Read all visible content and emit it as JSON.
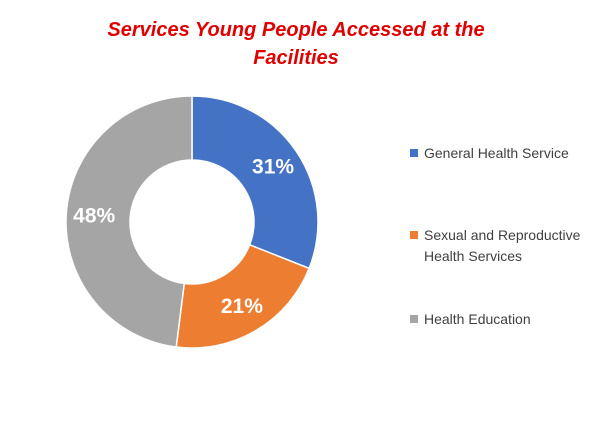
{
  "chart_data": {
    "type": "pie",
    "donut": true,
    "title": "Services Young People Accessed at the Facilities",
    "categories": [
      "General Health Service",
      "Sexual and Reproductive Health Services",
      "Health Education"
    ],
    "values": [
      31,
      21,
      48
    ],
    "labels": [
      "31%",
      "21%",
      "48%"
    ],
    "colors": [
      "#4472c4",
      "#ed7d31",
      "#a5a5a5"
    ],
    "legend": "right"
  },
  "legend_items": [
    {
      "label": "General Health Service",
      "color": "#4472c4"
    },
    {
      "label": "Sexual and Reproductive Health Services",
      "color": "#ed7d31"
    },
    {
      "label": "Health Education",
      "color": "#a5a5a5"
    }
  ]
}
